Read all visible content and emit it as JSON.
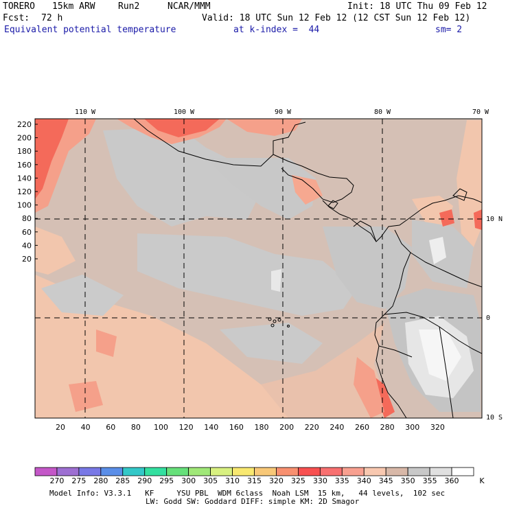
{
  "header": {
    "model": "TORERO",
    "resolution": "15km ARW",
    "run": "Run2",
    "org": "NCAR/MMM",
    "init": "Init: 18 UTC Thu 09 Feb 12",
    "fcst_label": "Fcst:",
    "fcst_value": "72 h",
    "valid": "Valid: 18 UTC Sun 12 Feb 12 (12 CST Sun 12 Feb 12)",
    "field": "Equivalent potential temperature",
    "level": "at k-index =  44",
    "smoothing": "sm= 2"
  },
  "map": {
    "lon_labels": [
      "110 W",
      "100 W",
      "90 W",
      "80 W",
      "70 W"
    ],
    "lat_labels": [
      "10 N",
      "0",
      "10 S"
    ],
    "y_ticks": [
      "220",
      "200",
      "180",
      "160",
      "140",
      "120",
      "100",
      "80",
      "60",
      "40",
      "20"
    ],
    "x_ticks": [
      "20",
      "40",
      "60",
      "80",
      "100",
      "120",
      "140",
      "160",
      "180",
      "200",
      "220",
      "240",
      "260",
      "280",
      "300",
      "320"
    ]
  },
  "colorbar": {
    "unit": "K",
    "labels": [
      "270",
      "275",
      "280",
      "285",
      "290",
      "295",
      "300",
      "305",
      "310",
      "315",
      "320",
      "325",
      "330",
      "335",
      "340",
      "345",
      "350",
      "355",
      "360"
    ],
    "colors": [
      "#c457c8",
      "#9d6fd2",
      "#7878e6",
      "#5a8ee8",
      "#33c8c8",
      "#33e0a0",
      "#66e07a",
      "#a0e878",
      "#d8f080",
      "#f8e870",
      "#f8c878",
      "#f89070",
      "#f85050",
      "#f87070",
      "#f8a090",
      "#f8c8b0",
      "#d8b8a8",
      "#c8c8c8",
      "#e0e0e0",
      "#ffffff"
    ]
  },
  "footer": {
    "line1": "Model Info: V3.3.1   KF     YSU PBL  WDM 6class  Noah LSM  15 km,   44 levels,  102 sec",
    "line2": "LW: Godd SW: Goddard DIFF: simple KM: 2D Smagor"
  }
}
